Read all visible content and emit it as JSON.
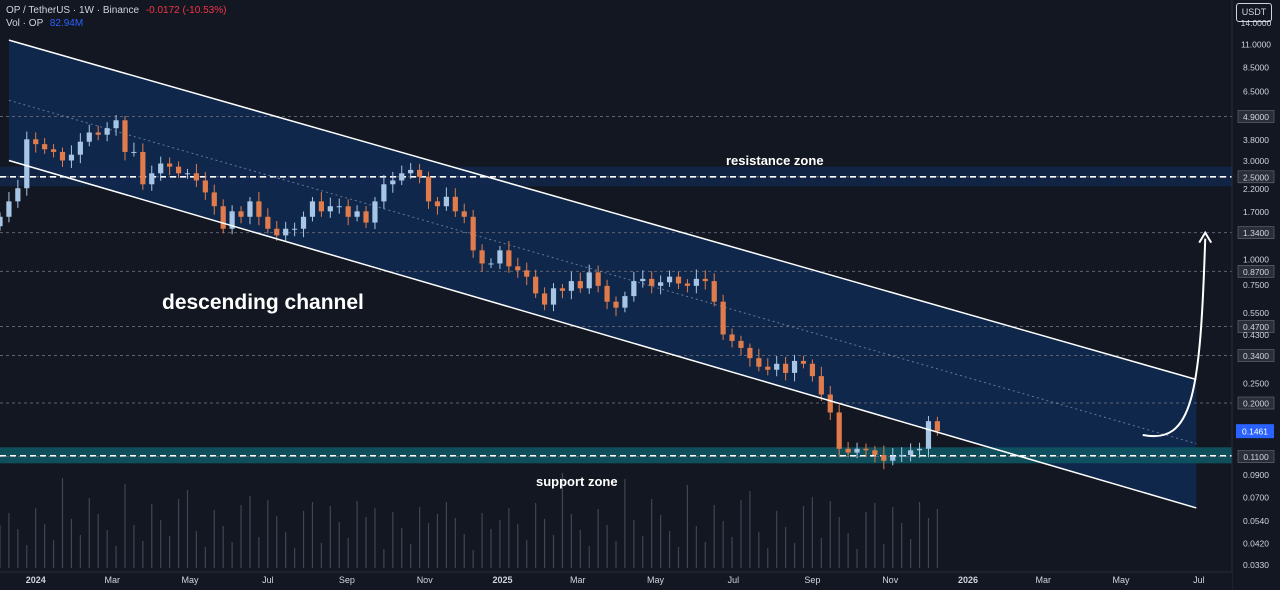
{
  "header": {
    "symbol": "OP / TetherUS · 1W · Binance",
    "change": "-0.0172 (-10.53%)",
    "vol_label": "Vol · OP",
    "vol_value": "82.94M",
    "currency": "USDT"
  },
  "colors": {
    "background": "#131722",
    "up": "#a7c6e6",
    "down": "#e07c4c",
    "channel_fill": "#0f2a52",
    "support_fill": "#0f5563",
    "resistance_fill": "#12284d",
    "text": "#d1d4dc"
  },
  "chart_data": {
    "type": "candlestick",
    "y_scale": "log",
    "ylim": [
      0.031,
      18
    ],
    "x_range": [
      "2023-12-04",
      "2026-07-27"
    ],
    "y_ticks": [
      "14.0000",
      "11.0000",
      "8.5000",
      "6.5000",
      "4.9000",
      "3.8000",
      "3.0000",
      "2.5000",
      "2.2000",
      "1.7000",
      "1.3400",
      "1.0000",
      "0.8700",
      "0.7500",
      "0.5500",
      "0.4700",
      "0.4300",
      "0.3400",
      "0.2500",
      "0.2000",
      "0.1461",
      "0.1100",
      "0.0900",
      "0.0700",
      "0.0540",
      "0.0420",
      "0.0330"
    ],
    "highlighted_ticks": [
      "4.9000",
      "2.5000",
      "1.3400",
      "0.8700",
      "0.4700",
      "0.3400",
      "0.2000",
      "0.1100"
    ],
    "last_price": "0.1461",
    "x_ticks": [
      {
        "label": "2024",
        "date": "2024-01-01",
        "bold": true
      },
      {
        "label": "Mar",
        "date": "2024-03-01",
        "bold": false
      },
      {
        "label": "May",
        "date": "2024-05-01",
        "bold": false
      },
      {
        "label": "Jul",
        "date": "2024-07-01",
        "bold": false
      },
      {
        "label": "Sep",
        "date": "2024-09-01",
        "bold": false
      },
      {
        "label": "Nov",
        "date": "2024-11-01",
        "bold": false
      },
      {
        "label": "2025",
        "date": "2025-01-01",
        "bold": true
      },
      {
        "label": "Mar",
        "date": "2025-03-01",
        "bold": false
      },
      {
        "label": "May",
        "date": "2025-05-01",
        "bold": false
      },
      {
        "label": "Jul",
        "date": "2025-07-01",
        "bold": false
      },
      {
        "label": "Sep",
        "date": "2025-09-01",
        "bold": false
      },
      {
        "label": "Nov",
        "date": "2025-11-01",
        "bold": false
      },
      {
        "label": "2026",
        "date": "2026-01-01",
        "bold": true
      },
      {
        "label": "Mar",
        "date": "2026-03-01",
        "bold": false
      },
      {
        "label": "May",
        "date": "2026-05-01",
        "bold": false
      },
      {
        "label": "Jul",
        "date": "2026-07-01",
        "bold": false
      }
    ],
    "closes": [
      1.6,
      1.9,
      2.2,
      3.8,
      3.6,
      3.4,
      3.3,
      3.0,
      3.2,
      3.7,
      4.1,
      4.0,
      4.3,
      4.7,
      3.3,
      3.3,
      2.3,
      2.6,
      2.9,
      2.8,
      2.6,
      2.6,
      2.4,
      2.1,
      1.8,
      1.4,
      1.7,
      1.6,
      1.9,
      1.6,
      1.4,
      1.3,
      1.4,
      1.4,
      1.6,
      1.9,
      1.7,
      1.8,
      1.8,
      1.6,
      1.7,
      1.5,
      1.9,
      2.3,
      2.4,
      2.6,
      2.7,
      2.5,
      1.9,
      1.8,
      2.0,
      1.7,
      1.6,
      1.1,
      0.95,
      0.95,
      1.1,
      0.92,
      0.88,
      0.82,
      0.68,
      0.6,
      0.72,
      0.7,
      0.78,
      0.72,
      0.86,
      0.74,
      0.62,
      0.58,
      0.66,
      0.78,
      0.8,
      0.74,
      0.77,
      0.82,
      0.76,
      0.74,
      0.8,
      0.78,
      0.62,
      0.43,
      0.4,
      0.37,
      0.33,
      0.3,
      0.29,
      0.31,
      0.28,
      0.32,
      0.31,
      0.27,
      0.22,
      0.18,
      0.12,
      0.115,
      0.12,
      0.118,
      0.112,
      0.105,
      0.11,
      0.112,
      0.118,
      0.12,
      0.1633,
      0.1461
    ],
    "channel": {
      "upper": [
        {
          "date": "2023-12-11",
          "price": 11.5
        },
        {
          "date": "2026-06-29",
          "price": 0.26
        }
      ],
      "lower": [
        {
          "date": "2023-12-11",
          "price": 3.0
        },
        {
          "date": "2026-06-29",
          "price": 0.062
        }
      ],
      "end": "2026-06-29"
    },
    "resistance_zone": {
      "label": "resistance zone",
      "low": 2.25,
      "high": 2.8,
      "line": 2.5
    },
    "support_zone": {
      "label": "support zone",
      "low": 0.102,
      "high": 0.122,
      "line": 0.111
    },
    "channel_label": "descending channel",
    "projection": {
      "from": {
        "date": "2026-05-18",
        "price": 0.14
      },
      "to": {
        "date": "2026-07-06",
        "price": 1.34
      }
    }
  }
}
